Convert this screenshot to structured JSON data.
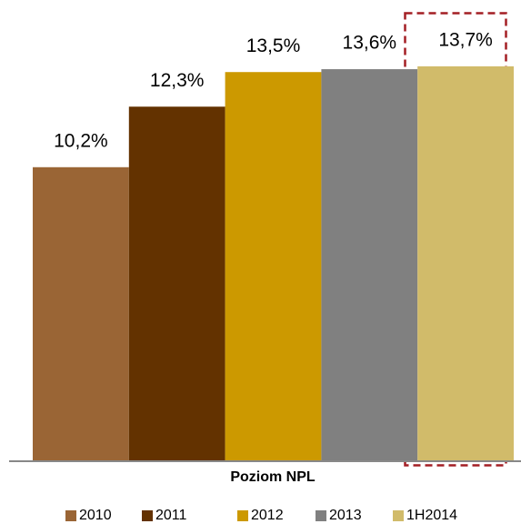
{
  "chart_data": {
    "type": "bar",
    "categories": [
      "Poziom NPL"
    ],
    "series": [
      {
        "name": "2010",
        "color": "#9a6535",
        "values": [
          10.2
        ],
        "value_labels": [
          "10,2%"
        ]
      },
      {
        "name": "2011",
        "color": "#633200",
        "values": [
          12.3
        ],
        "value_labels": [
          "12,3%"
        ]
      },
      {
        "name": "2012",
        "color": "#cc9900",
        "values": [
          13.5
        ],
        "value_labels": [
          "13,5%"
        ]
      },
      {
        "name": "2013",
        "color": "#808080",
        "values": [
          13.6
        ],
        "value_labels": [
          "13,6%"
        ]
      },
      {
        "name": "1H2014",
        "color": "#d1bb6a",
        "values": [
          13.7
        ],
        "value_labels": [
          "13,7%"
        ]
      }
    ],
    "ylim": [
      0,
      16
    ],
    "legend": "bottom"
  }
}
